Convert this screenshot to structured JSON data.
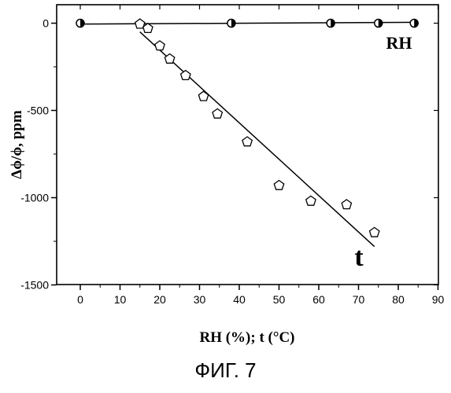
{
  "chart_data": {
    "type": "scatter",
    "xlabel": "RH (%); t (°C)",
    "ylabel": "Δϕ/ϕ, ppm",
    "xlim": [
      -5,
      90
    ],
    "ylim": [
      -1500,
      100
    ],
    "x_ticks": [
      0,
      10,
      20,
      30,
      40,
      50,
      60,
      70,
      80,
      90
    ],
    "y_ticks": [
      0,
      -500,
      -1000,
      -1500
    ],
    "grid": false,
    "series": [
      {
        "name": "RH",
        "marker": "half-filled-circle",
        "x": [
          0,
          38,
          63,
          75,
          84
        ],
        "y": [
          0,
          0,
          0,
          0,
          0
        ],
        "fit_line": {
          "x": [
            0,
            84
          ],
          "y": [
            -5,
            5
          ]
        }
      },
      {
        "name": "t",
        "marker": "open-pentagon",
        "x": [
          15,
          17,
          20,
          22.5,
          26.5,
          31,
          34.5,
          42,
          50,
          58,
          67,
          74
        ],
        "y": [
          -5,
          -30,
          -130,
          -205,
          -300,
          -420,
          -520,
          -680,
          -930,
          -1020,
          -1040,
          -1200
        ],
        "fit_line": {
          "x": [
            15,
            74
          ],
          "y": [
            -50,
            -1280
          ]
        }
      }
    ]
  },
  "caption": "ФИГ. 7"
}
